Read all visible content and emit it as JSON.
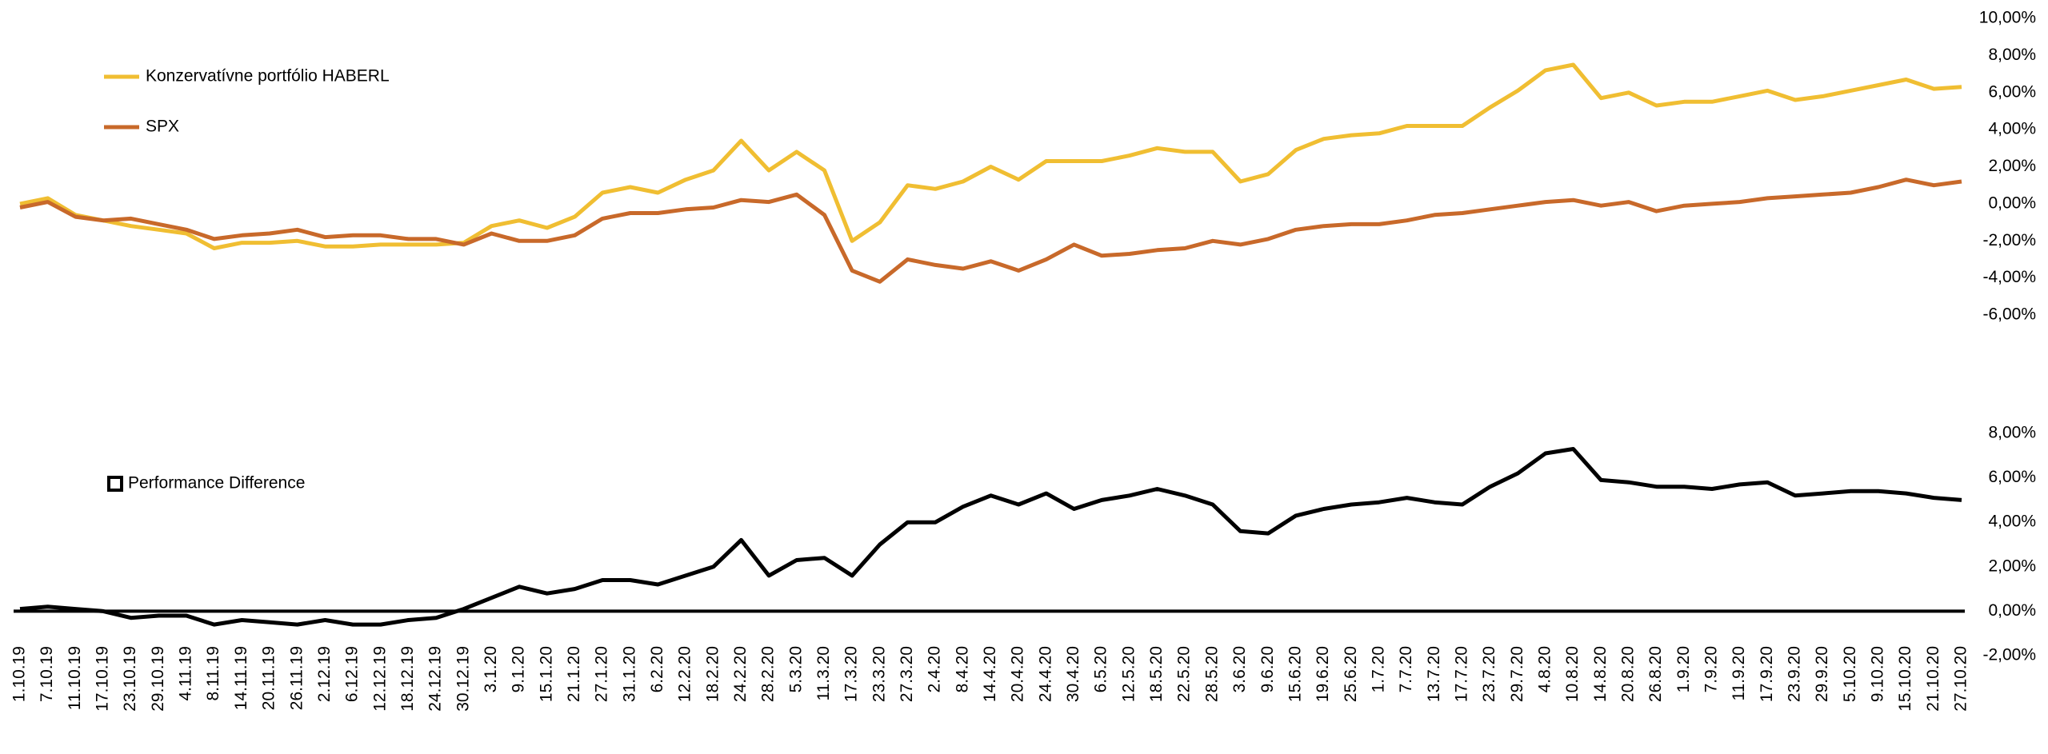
{
  "chart_data": [
    {
      "type": "line",
      "legend": "upper-left",
      "legend_marker": "line",
      "zero_line": false,
      "ylim": [
        -6,
        10
      ],
      "yticks": [
        {
          "value": -6,
          "label": "-6,00%"
        },
        {
          "value": -4,
          "label": "-4,00%"
        },
        {
          "value": -2,
          "label": "-2,00%"
        },
        {
          "value": 0,
          "label": "0,00%"
        },
        {
          "value": 2,
          "label": "2,00%"
        },
        {
          "value": 4,
          "label": "4,00%"
        },
        {
          "value": 6,
          "label": "6,00%"
        },
        {
          "value": 8,
          "label": "8,00%"
        },
        {
          "value": 10,
          "label": "10,00%"
        }
      ],
      "series": [
        {
          "name": "Konzervatívne portfólio HABERL",
          "color": "#f0be32",
          "values": [
            0,
            0.3,
            -0.6,
            -0.9,
            -1.2,
            -1.4,
            -1.6,
            -2.4,
            -2.1,
            -2.1,
            -2.0,
            -2.3,
            -2.3,
            -2.2,
            -2.2,
            -2.2,
            -2.1,
            -1.2,
            -0.9,
            -1.3,
            -0.7,
            0.6,
            0.9,
            0.6,
            1.3,
            1.8,
            3.4,
            1.8,
            2.8,
            1.8,
            -2.0,
            -1.0,
            1.0,
            0.8,
            1.2,
            2.0,
            1.3,
            2.3,
            2.3,
            2.3,
            2.6,
            3.0,
            2.8,
            2.8,
            1.2,
            1.6,
            2.9,
            3.5,
            3.7,
            3.8,
            4.2,
            4.2,
            4.2,
            5.2,
            6.1,
            7.2,
            7.5,
            5.7,
            6.0,
            5.3,
            5.5,
            5.5,
            5.8,
            6.1,
            5.6,
            5.8,
            6.1,
            6.4,
            6.7,
            6.2,
            6.3
          ]
        },
        {
          "name": "SPX",
          "color": "#c8692a",
          "values": [
            -0.2,
            0.1,
            -0.7,
            -0.9,
            -0.8,
            -1.1,
            -1.4,
            -1.9,
            -1.7,
            -1.6,
            -1.4,
            -1.8,
            -1.7,
            -1.7,
            -1.9,
            -1.9,
            -2.2,
            -1.6,
            -2.0,
            -2.0,
            -1.7,
            -0.8,
            -0.5,
            -0.5,
            -0.3,
            -0.2,
            0.2,
            0.1,
            0.5,
            -0.6,
            -3.6,
            -4.2,
            -3.0,
            -3.3,
            -3.5,
            -3.1,
            -3.6,
            -3.0,
            -2.2,
            -2.8,
            -2.7,
            -2.5,
            -2.4,
            -2.0,
            -2.2,
            -1.9,
            -1.4,
            -1.2,
            -1.1,
            -1.1,
            -0.9,
            -0.6,
            -0.5,
            -0.3,
            -0.1,
            0.1,
            0.2,
            -0.1,
            0.1,
            -0.4,
            -0.1,
            0.0,
            0.1,
            0.3,
            0.4,
            0.5,
            0.6,
            0.9,
            1.3,
            1.0,
            1.2
          ]
        }
      ]
    },
    {
      "type": "line",
      "legend": "upper-left",
      "legend_marker": "square",
      "zero_line": true,
      "categories": [
        "1.10.19",
        "7.10.19",
        "11.10.19",
        "17.10.19",
        "23.10.19",
        "29.10.19",
        "4.11.19",
        "8.11.19",
        "14.11.19",
        "20.11.19",
        "26.11.19",
        "2.12.19",
        "6.12.19",
        "12.12.19",
        "18.12.19",
        "24.12.19",
        "30.12.19",
        "3.1.20",
        "9.1.20",
        "15.1.20",
        "21.1.20",
        "27.1.20",
        "31.1.20",
        "6.2.20",
        "12.2.20",
        "18.2.20",
        "24.2.20",
        "28.2.20",
        "5.3.20",
        "11.3.20",
        "17.3.20",
        "23.3.20",
        "27.3.20",
        "2.4.20",
        "8.4.20",
        "14.4.20",
        "20.4.20",
        "24.4.20",
        "30.4.20",
        "6.5.20",
        "12.5.20",
        "18.5.20",
        "22.5.20",
        "28.5.20",
        "3.6.20",
        "9.6.20",
        "15.6.20",
        "19.6.20",
        "25.6.20",
        "1.7.20",
        "7.7.20",
        "13.7.20",
        "17.7.20",
        "23.7.20",
        "29.7.20",
        "4.8.20",
        "10.8.20",
        "14.8.20",
        "20.8.20",
        "26.8.20",
        "1.9.20",
        "7.9.20",
        "11.9.20",
        "17.9.20",
        "23.9.20",
        "29.9.20",
        "5.10.20",
        "9.10.20",
        "15.10.20",
        "21.10.20",
        "27.10.20"
      ],
      "ylim": [
        -2,
        8
      ],
      "yticks": [
        {
          "value": -2,
          "label": "-2,00%"
        },
        {
          "value": 0,
          "label": "0,00%"
        },
        {
          "value": 2,
          "label": "2,00%"
        },
        {
          "value": 4,
          "label": "4,00%"
        },
        {
          "value": 6,
          "label": "6,00%"
        },
        {
          "value": 8,
          "label": "8,00%"
        }
      ],
      "series": [
        {
          "name": "Performance Difference",
          "color": "#000000",
          "values": [
            0.1,
            0.2,
            0.1,
            0,
            -0.3,
            -0.2,
            -0.2,
            -0.6,
            -0.4,
            -0.5,
            -0.6,
            -0.4,
            -0.6,
            -0.6,
            -0.4,
            -0.3,
            0.1,
            0.6,
            1.1,
            0.8,
            1.0,
            1.4,
            1.4,
            1.2,
            1.6,
            2.0,
            3.2,
            1.6,
            2.3,
            2.4,
            1.6,
            3.0,
            4.0,
            4.0,
            4.7,
            5.2,
            4.8,
            5.3,
            4.6,
            5.0,
            5.2,
            5.5,
            5.2,
            4.8,
            3.6,
            3.5,
            4.3,
            4.6,
            4.8,
            4.9,
            5.1,
            4.9,
            4.8,
            5.6,
            6.2,
            7.1,
            7.3,
            5.9,
            5.8,
            5.6,
            5.6,
            5.5,
            5.7,
            5.8,
            5.2,
            5.3,
            5.4,
            5.4,
            5.3,
            5.1,
            5.0
          ]
        }
      ]
    }
  ]
}
